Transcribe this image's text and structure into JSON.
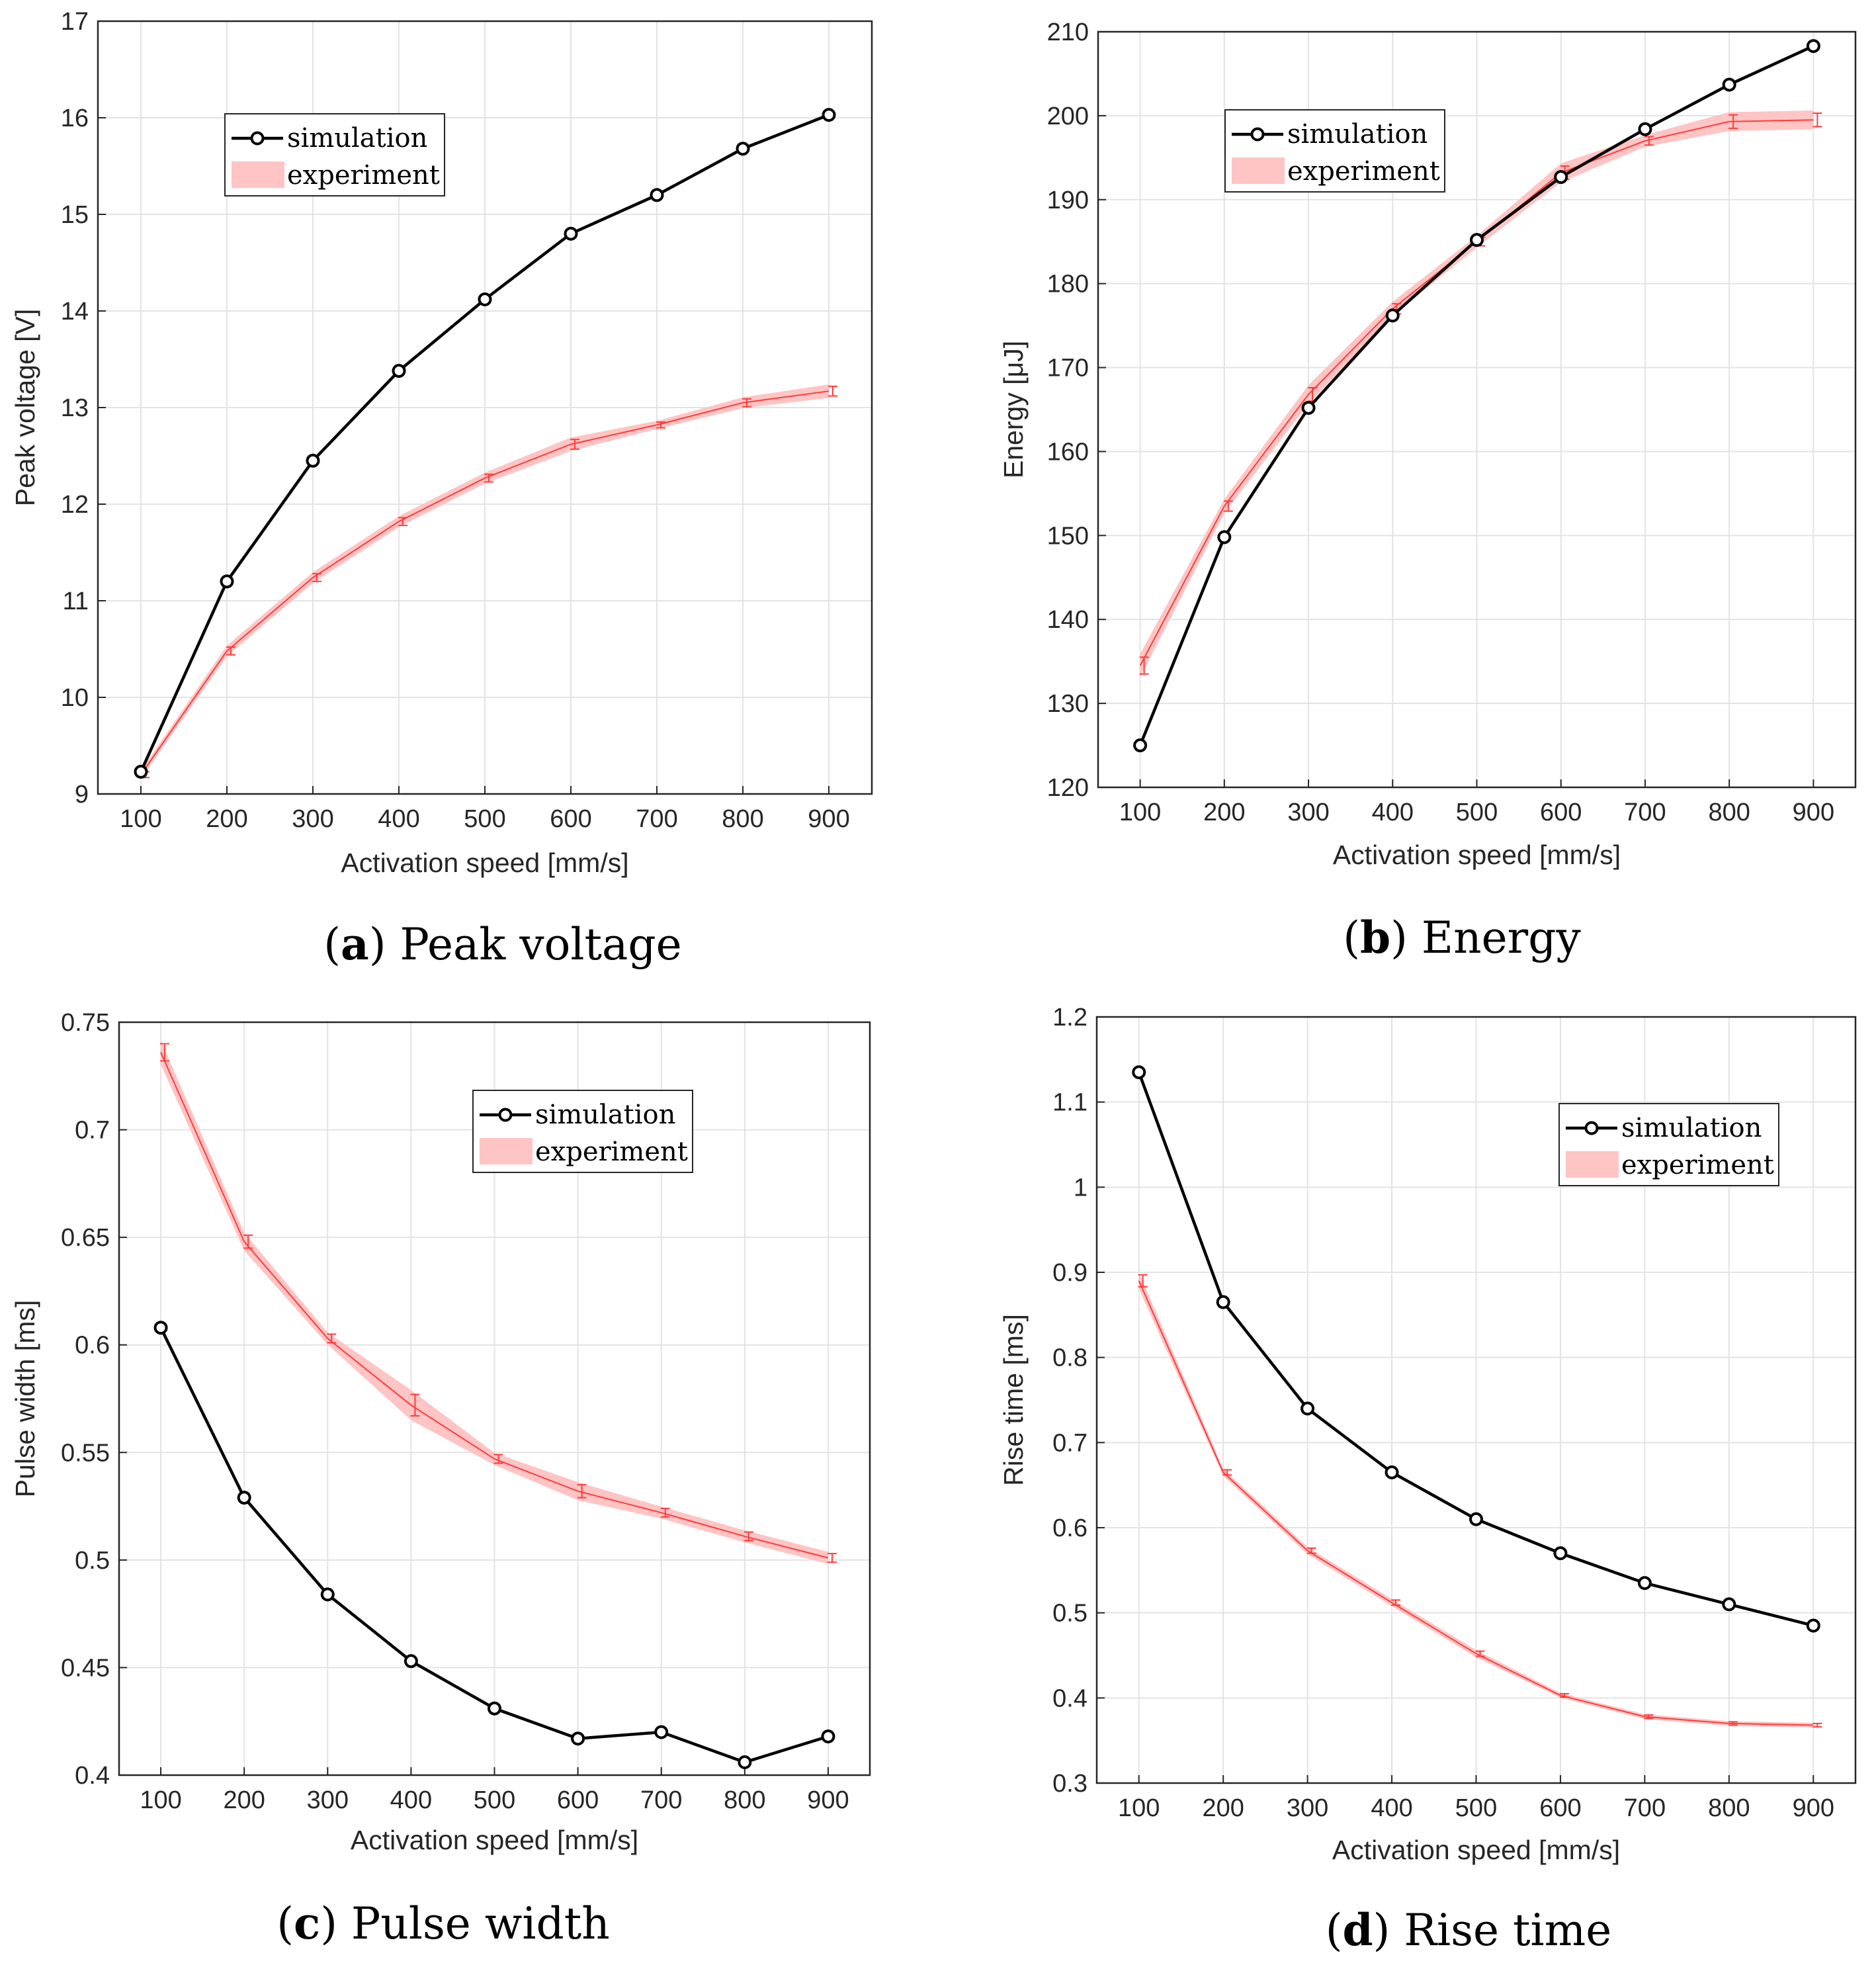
{
  "colors": {
    "simulation": "#000000",
    "experiment": "#ff3b3b",
    "band": "#ffc4c4",
    "grid": "#e3e3e3",
    "axis": "#262626"
  },
  "chart_data": [
    {
      "type": "line",
      "caption_letter": "a",
      "caption_text": " Peak voltage",
      "xlabel": "Activation speed [mm/s]",
      "ylabel": "Peak voltage [V]",
      "xlim": [
        50,
        950
      ],
      "ylim": [
        9,
        17
      ],
      "xticks": [
        100,
        200,
        300,
        400,
        500,
        600,
        700,
        800,
        900
      ],
      "yticks": [
        9,
        10,
        11,
        12,
        13,
        14,
        15,
        16,
        17
      ],
      "ytick_labels": [
        "9",
        "10",
        "11",
        "12",
        "13",
        "14",
        "15",
        "16",
        "17"
      ],
      "legend": {
        "entries": [
          "simulation",
          "experiment"
        ],
        "position": "top-left"
      },
      "series": [
        {
          "name": "simulation",
          "x": [
            100,
            200,
            300,
            400,
            500,
            600,
            700,
            800,
            900
          ],
          "values": [
            9.23,
            11.2,
            12.45,
            13.38,
            14.12,
            14.8,
            15.2,
            15.68,
            16.03
          ]
        },
        {
          "name": "experiment",
          "x": [
            100,
            200,
            300,
            400,
            500,
            600,
            700,
            800,
            900
          ],
          "values": [
            9.2,
            10.48,
            11.24,
            11.82,
            12.27,
            12.62,
            12.82,
            13.05,
            13.17
          ],
          "error": [
            0.03,
            0.04,
            0.04,
            0.04,
            0.04,
            0.05,
            0.03,
            0.04,
            0.05
          ]
        }
      ]
    },
    {
      "type": "line",
      "caption_letter": "b",
      "caption_text": " Energy",
      "xlabel": "Activation speed [mm/s]",
      "ylabel": "Energy [μJ]",
      "xlim": [
        50,
        950
      ],
      "ylim": [
        120,
        210
      ],
      "xticks": [
        100,
        200,
        300,
        400,
        500,
        600,
        700,
        800,
        900
      ],
      "yticks": [
        120,
        130,
        140,
        150,
        160,
        170,
        180,
        190,
        200,
        210
      ],
      "ytick_labels": [
        "120",
        "130",
        "140",
        "150",
        "160",
        "170",
        "180",
        "190",
        "200",
        "210"
      ],
      "legend": {
        "entries": [
          "simulation",
          "experiment"
        ],
        "position": "top-center"
      },
      "series": [
        {
          "name": "simulation",
          "x": [
            100,
            200,
            300,
            400,
            500,
            600,
            700,
            800,
            900
          ],
          "values": [
            125,
            149.8,
            165.2,
            176.2,
            185.2,
            192.7,
            198.4,
            203.7,
            208.3
          ]
        },
        {
          "name": "experiment",
          "x": [
            100,
            200,
            300,
            400,
            500,
            600,
            700,
            800,
            900
          ],
          "values": [
            134.5,
            153.5,
            166.8,
            177.0,
            185.0,
            193.2,
            197.0,
            199.3,
            199.5
          ],
          "error": [
            1.0,
            0.6,
            0.8,
            0.6,
            0.5,
            0.8,
            0.5,
            0.8,
            0.8
          ]
        }
      ]
    },
    {
      "type": "line",
      "caption_letter": "c",
      "caption_text": " Pulse width",
      "xlabel": "Activation speed [mm/s]",
      "ylabel": "Pulse width [ms]",
      "xlim": [
        50,
        950
      ],
      "ylim": [
        0.4,
        0.75
      ],
      "xticks": [
        100,
        200,
        300,
        400,
        500,
        600,
        700,
        800,
        900
      ],
      "yticks": [
        0.4,
        0.45,
        0.5,
        0.55,
        0.6,
        0.65,
        0.7,
        0.75
      ],
      "ytick_labels": [
        "0.4",
        "0.45",
        "0.5",
        "0.55",
        "0.6",
        "0.65",
        "0.7",
        "0.75"
      ],
      "legend": {
        "entries": [
          "simulation",
          "experiment"
        ],
        "position": "top-center"
      },
      "series": [
        {
          "name": "simulation",
          "x": [
            100,
            200,
            300,
            400,
            500,
            600,
            700,
            800,
            900
          ],
          "values": [
            0.608,
            0.529,
            0.484,
            0.453,
            0.431,
            0.417,
            0.42,
            0.406,
            0.418
          ]
        },
        {
          "name": "experiment",
          "x": [
            100,
            200,
            300,
            400,
            500,
            600,
            700,
            800,
            900
          ],
          "values": [
            0.736,
            0.648,
            0.603,
            0.572,
            0.547,
            0.532,
            0.522,
            0.511,
            0.501
          ],
          "error": [
            0.004,
            0.003,
            0.002,
            0.005,
            0.002,
            0.003,
            0.002,
            0.002,
            0.002
          ]
        }
      ]
    },
    {
      "type": "line",
      "caption_letter": "d",
      "caption_text": " Rise time",
      "xlabel": "Activation speed [mm/s]",
      "ylabel": "Rise time [ms]",
      "xlim": [
        50,
        950
      ],
      "ylim": [
        0.3,
        1.2
      ],
      "xticks": [
        100,
        200,
        300,
        400,
        500,
        600,
        700,
        800,
        900
      ],
      "yticks": [
        0.3,
        0.4,
        0.5,
        0.6,
        0.7,
        0.8,
        0.9,
        1.0,
        1.1,
        1.2
      ],
      "ytick_labels": [
        "0.3",
        "0.4",
        "0.5",
        "0.6",
        "0.7",
        "0.8",
        "0.9",
        "1",
        "1.1",
        "1.2"
      ],
      "legend": {
        "entries": [
          "simulation",
          "experiment"
        ],
        "position": "top-right"
      },
      "series": [
        {
          "name": "simulation",
          "x": [
            100,
            200,
            300,
            400,
            500,
            600,
            700,
            800,
            900
          ],
          "values": [
            1.135,
            0.865,
            0.74,
            0.665,
            0.61,
            0.57,
            0.535,
            0.51,
            0.485
          ]
        },
        {
          "name": "experiment",
          "x": [
            100,
            200,
            300,
            400,
            500,
            600,
            700,
            800,
            900
          ],
          "values": [
            0.89,
            0.665,
            0.573,
            0.512,
            0.452,
            0.403,
            0.378,
            0.37,
            0.368
          ],
          "error": [
            0.007,
            0.003,
            0.003,
            0.003,
            0.003,
            0.002,
            0.002,
            0.002,
            0.002
          ]
        }
      ]
    }
  ]
}
